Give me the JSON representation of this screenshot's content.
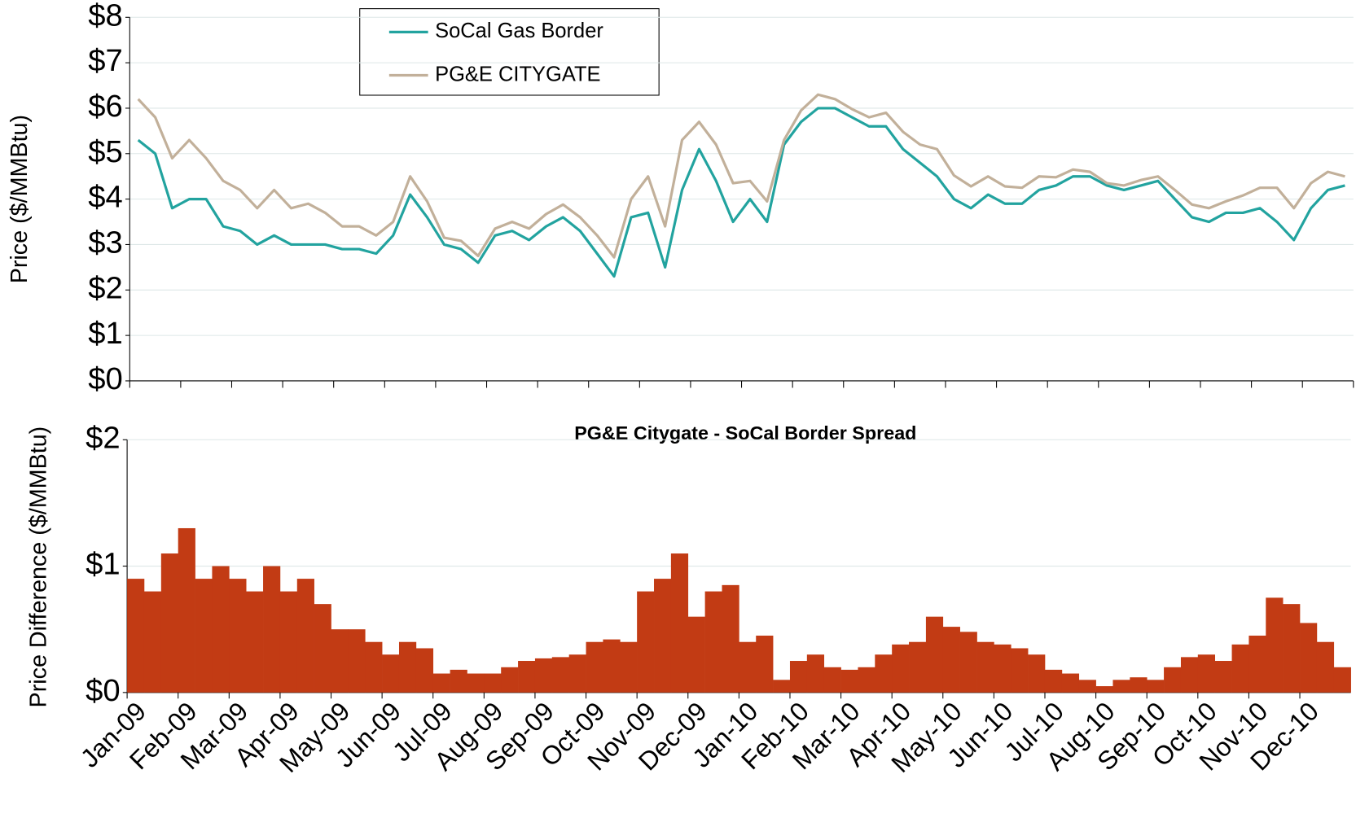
{
  "chart_data": [
    {
      "type": "line",
      "ylabel": "Price ($/MMBtu)",
      "ylim": [
        0,
        8
      ],
      "yticks": [
        {
          "value": 0,
          "label": "$0"
        },
        {
          "value": 1,
          "label": "$1"
        },
        {
          "value": 2,
          "label": "$2"
        },
        {
          "value": 3,
          "label": "$3"
        },
        {
          "value": 4,
          "label": "$4"
        },
        {
          "value": 5,
          "label": "$5"
        },
        {
          "value": 6,
          "label": "$6"
        },
        {
          "value": 7,
          "label": "$7"
        },
        {
          "value": 8,
          "label": "$8"
        }
      ],
      "grid": true,
      "legend": "upper-center",
      "series": [
        {
          "name": "SoCal Gas Border",
          "color": "#22a39f",
          "values": [
            5.3,
            5.0,
            3.8,
            4.0,
            4.0,
            3.4,
            3.3,
            3.0,
            3.2,
            3.0,
            3.0,
            3.0,
            2.9,
            2.9,
            2.8,
            3.2,
            4.1,
            3.6,
            3.0,
            2.9,
            2.6,
            3.2,
            3.3,
            3.1,
            3.4,
            3.6,
            3.3,
            2.8,
            2.3,
            3.6,
            3.7,
            2.5,
            4.2,
            5.1,
            4.4,
            3.5,
            4.0,
            3.5,
            5.2,
            5.7,
            6.0,
            6.0,
            5.8,
            5.6,
            5.6,
            5.1,
            4.8,
            4.5,
            4.0,
            3.8,
            4.1,
            3.9,
            3.9,
            4.2,
            4.3,
            4.5,
            4.5,
            4.3,
            4.2,
            4.3,
            4.4,
            4.0,
            3.6,
            3.5,
            3.7,
            3.7,
            3.8,
            3.5,
            3.1,
            3.8,
            4.2,
            4.3
          ]
        },
        {
          "name": "PG&E CITYGATE",
          "color": "#c2b09a",
          "values": [
            6.2,
            5.8,
            4.9,
            5.3,
            4.9,
            4.4,
            4.2,
            3.8,
            4.2,
            3.8,
            3.9,
            3.7,
            3.4,
            3.4,
            3.2,
            3.5,
            4.5,
            3.95,
            3.15,
            3.08,
            2.75,
            3.35,
            3.5,
            3.35,
            3.67,
            3.88,
            3.6,
            3.2,
            2.72,
            4.0,
            4.5,
            3.4,
            5.3,
            5.7,
            5.2,
            4.35,
            4.4,
            3.95,
            5.3,
            5.95,
            6.3,
            6.2,
            5.98,
            5.8,
            5.9,
            5.48,
            5.2,
            5.1,
            4.52,
            4.28,
            4.5,
            4.28,
            4.25,
            4.5,
            4.48,
            4.65,
            4.6,
            4.35,
            4.3,
            4.42,
            4.5,
            4.2,
            3.88,
            3.8,
            3.95,
            4.08,
            4.25,
            4.25,
            3.8,
            4.35,
            4.6,
            4.5
          ]
        }
      ]
    },
    {
      "type": "bar",
      "title": "PG&E Citygate - SoCal Border Spread",
      "ylabel": "Price Difference ($/MMBtu)",
      "ylim": [
        0,
        2
      ],
      "yticks": [
        {
          "value": 0,
          "label": "$0"
        },
        {
          "value": 1,
          "label": "$1"
        },
        {
          "value": 2,
          "label": "$2"
        }
      ],
      "grid": true,
      "color": "#c23b14",
      "categories": [
        "Jan-09",
        null,
        null,
        "Feb-09",
        null,
        null,
        "Mar-09",
        null,
        null,
        "Apr-09",
        null,
        null,
        "May-09",
        null,
        null,
        "Jun-09",
        null,
        null,
        "Jul-09",
        null,
        null,
        "Aug-09",
        null,
        null,
        "Sep-09",
        null,
        null,
        "Oct-09",
        null,
        null,
        "Nov-09",
        null,
        null,
        "Dec-09",
        null,
        null,
        "Jan-10",
        null,
        null,
        "Feb-10",
        null,
        null,
        "Mar-10",
        null,
        null,
        "Apr-10",
        null,
        null,
        "May-10",
        null,
        null,
        "Jun-10",
        null,
        null,
        "Jul-10",
        null,
        null,
        "Aug-10",
        null,
        null,
        "Sep-10",
        null,
        null,
        "Oct-10",
        null,
        null,
        "Nov-10",
        null,
        null,
        "Dec-10",
        null,
        null
      ],
      "values": [
        0.9,
        0.8,
        1.1,
        1.3,
        0.9,
        1.0,
        0.9,
        0.8,
        1.0,
        0.8,
        0.9,
        0.7,
        0.5,
        0.5,
        0.4,
        0.3,
        0.4,
        0.35,
        0.15,
        0.18,
        0.15,
        0.15,
        0.2,
        0.25,
        0.27,
        0.28,
        0.3,
        0.4,
        0.42,
        0.4,
        0.8,
        0.9,
        1.1,
        0.6,
        0.8,
        0.85,
        0.4,
        0.45,
        0.1,
        0.25,
        0.3,
        0.2,
        0.18,
        0.2,
        0.3,
        0.38,
        0.4,
        0.6,
        0.52,
        0.48,
        0.4,
        0.38,
        0.35,
        0.3,
        0.18,
        0.15,
        0.1,
        0.05,
        0.1,
        0.12,
        0.1,
        0.2,
        0.28,
        0.3,
        0.25,
        0.38,
        0.45,
        0.75,
        0.7,
        0.55,
        0.4,
        0.2
      ]
    }
  ]
}
